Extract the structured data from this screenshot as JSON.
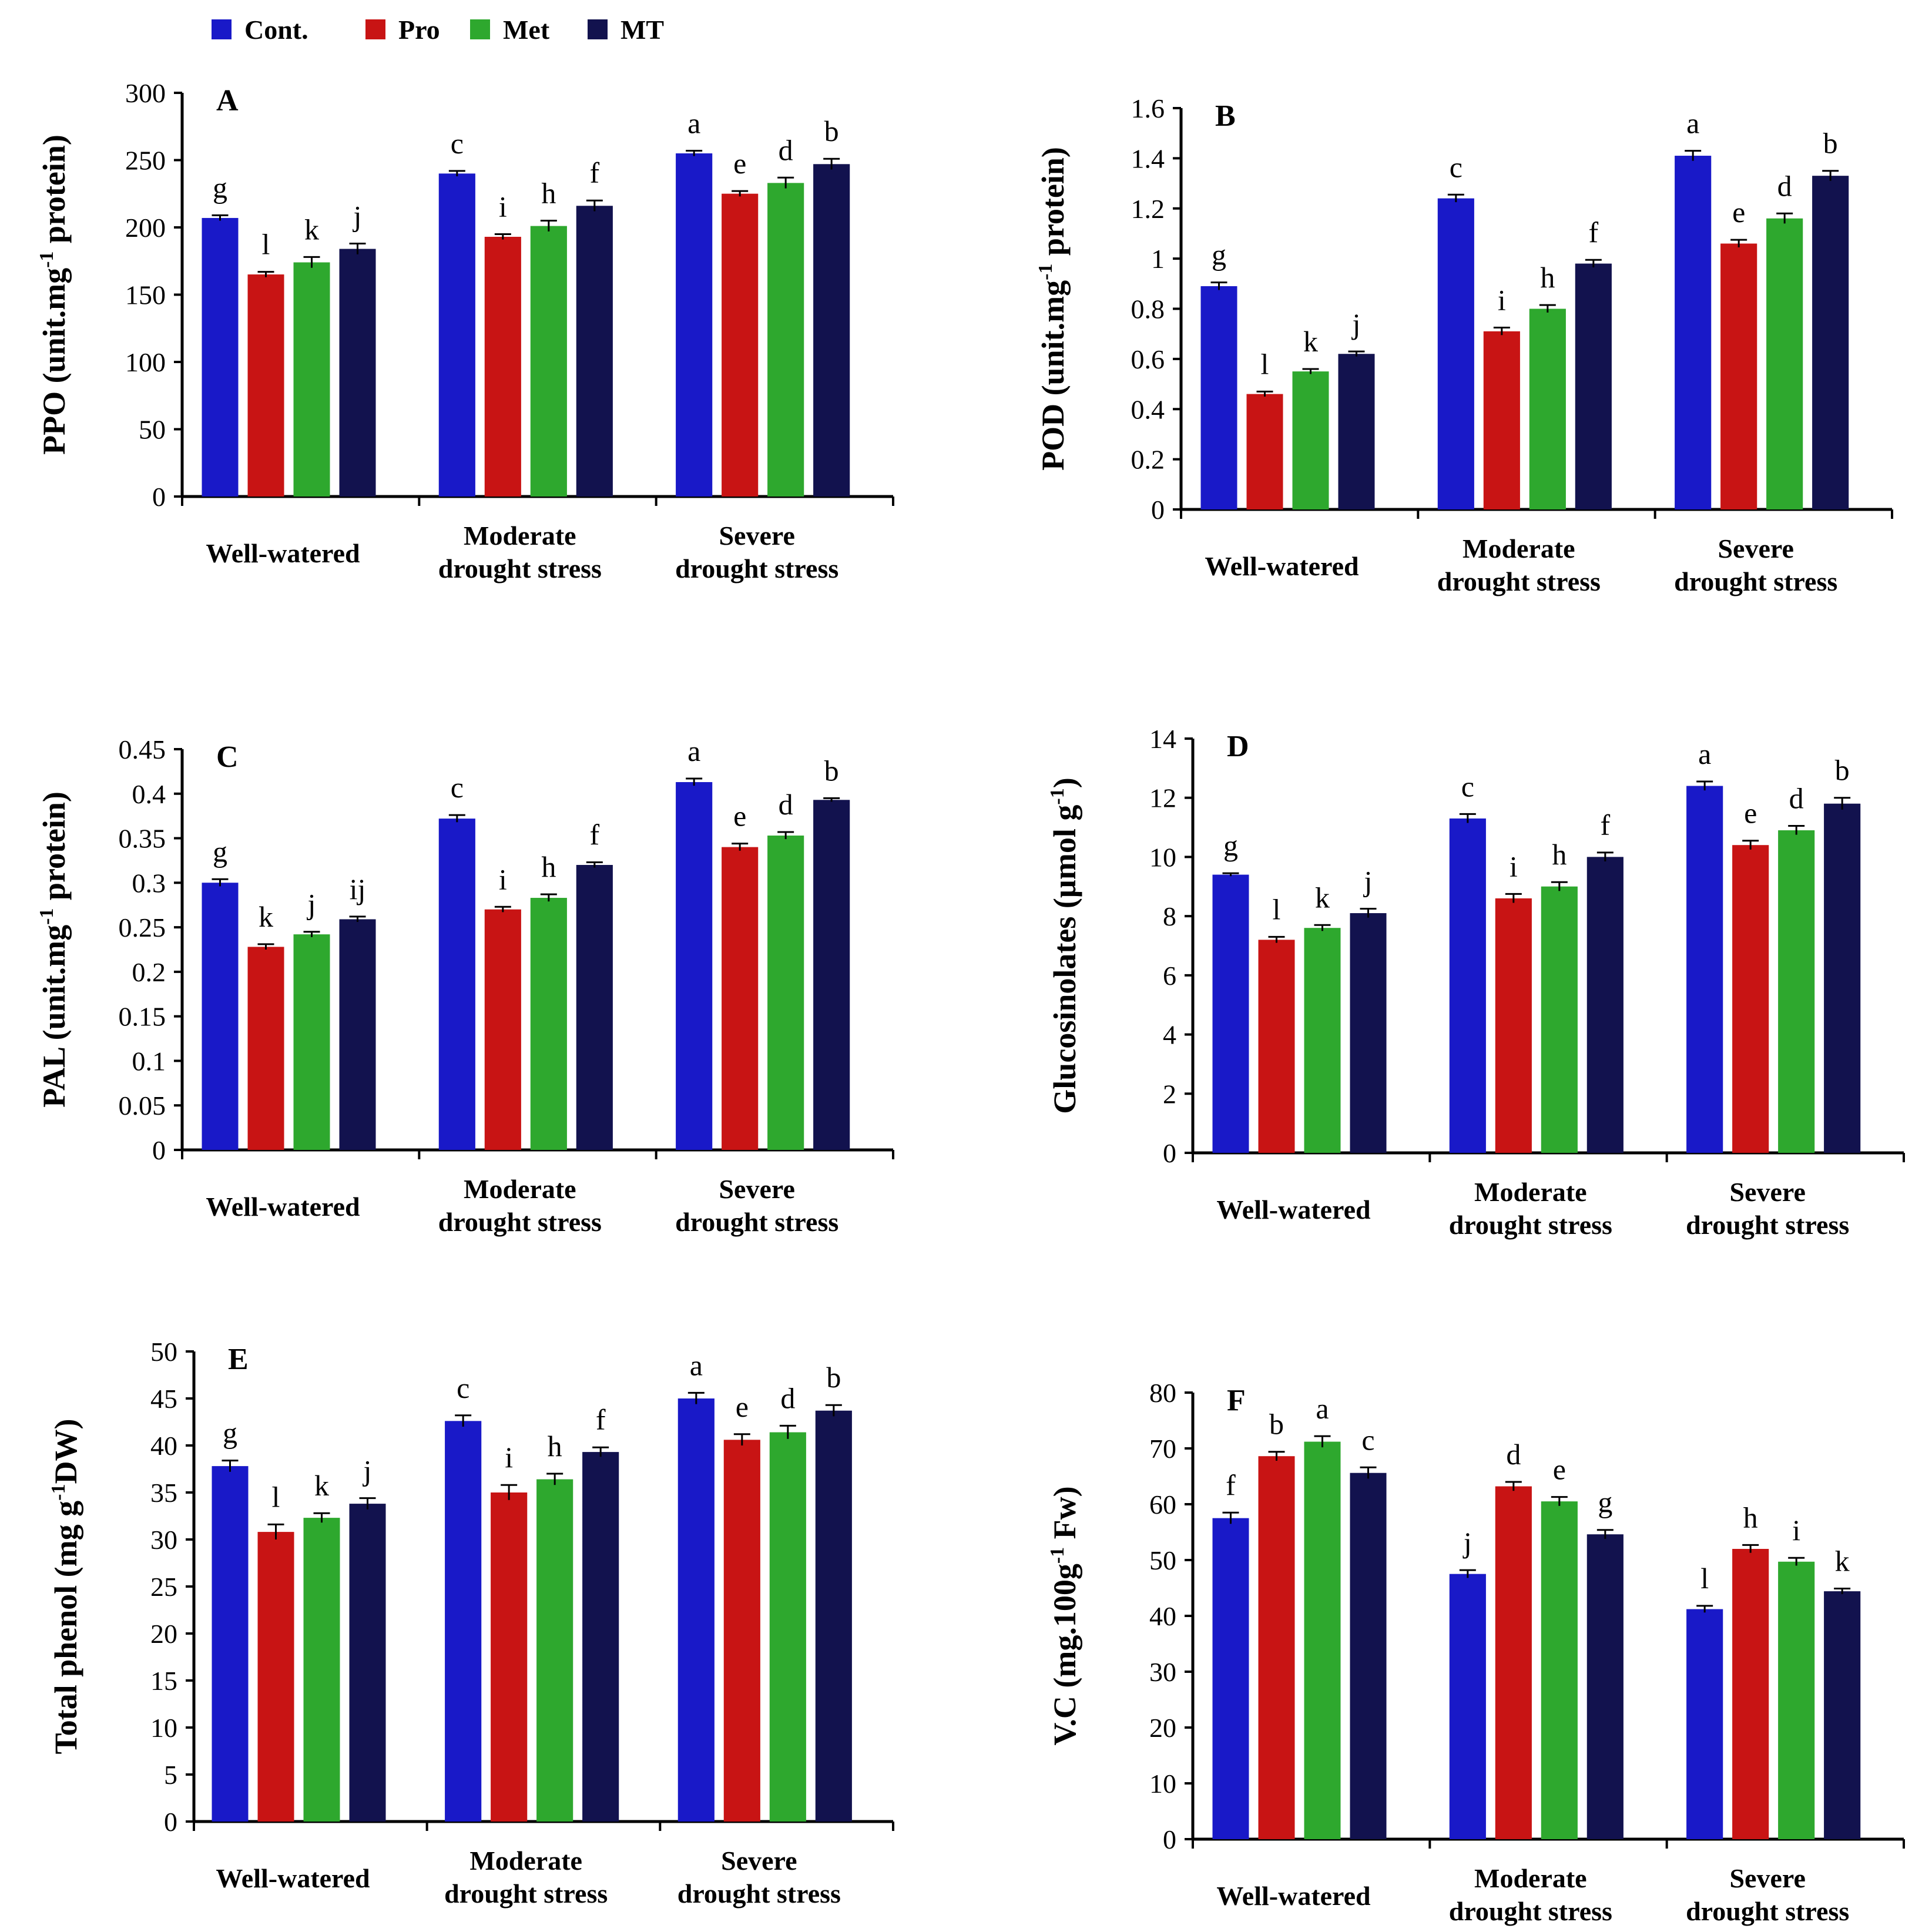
{
  "legend": [
    {
      "label": "Cont.",
      "color": "#1919c8"
    },
    {
      "label": "Pro",
      "color": "#c81414"
    },
    {
      "label": "Met",
      "color": "#2ea82e"
    },
    {
      "label": "MT",
      "color": "#12124e"
    }
  ],
  "chart_data": [
    {
      "type": "bar",
      "panel": "A",
      "ylabel": "PPO (unit.mg-1 protein)",
      "ylabel_main": "PPO (unit.mg",
      "ylabel_sup": "-1",
      "ylabel_tail": " protein)",
      "ylim": [
        0,
        300
      ],
      "yticks": [
        0,
        50,
        100,
        150,
        200,
        250,
        300
      ],
      "categories": [
        [
          "Well-watered"
        ],
        [
          "Moderate",
          "drought stress"
        ],
        [
          "Severe",
          "drought stress"
        ]
      ],
      "series": [
        {
          "name": "Cont.",
          "values": [
            207,
            240,
            255
          ],
          "errors": [
            2,
            2,
            2
          ],
          "letters": [
            "g",
            "c",
            "a"
          ]
        },
        {
          "name": "Pro",
          "values": [
            165,
            193,
            225
          ],
          "errors": [
            2,
            2,
            2
          ],
          "letters": [
            "l",
            "i",
            "e"
          ]
        },
        {
          "name": "Met",
          "values": [
            174,
            201,
            233
          ],
          "errors": [
            4,
            4,
            4
          ],
          "letters": [
            "k",
            "h",
            "d"
          ]
        },
        {
          "name": "MT",
          "values": [
            184,
            216,
            247
          ],
          "errors": [
            4,
            4,
            4
          ],
          "letters": [
            "j",
            "f",
            "b"
          ]
        }
      ]
    },
    {
      "type": "bar",
      "panel": "B",
      "ylabel": "POD (unit.mg-1 protein)",
      "ylabel_main": "POD (unit.mg",
      "ylabel_sup": "-1",
      "ylabel_tail": " protein)",
      "ylim": [
        0,
        1.6
      ],
      "yticks": [
        0,
        0.2,
        0.4,
        0.6,
        0.8,
        1,
        1.2,
        1.4,
        1.6
      ],
      "categories": [
        [
          "Well-watered"
        ],
        [
          "Moderate",
          "drought stress"
        ],
        [
          "Severe",
          "drought stress"
        ]
      ],
      "series": [
        {
          "name": "Cont.",
          "values": [
            0.89,
            1.24,
            1.41
          ],
          "errors": [
            0.015,
            0.015,
            0.02
          ],
          "letters": [
            "g",
            "c",
            "a"
          ]
        },
        {
          "name": "Pro",
          "values": [
            0.46,
            0.71,
            1.06
          ],
          "errors": [
            0.01,
            0.015,
            0.015
          ],
          "letters": [
            "l",
            "i",
            "e"
          ]
        },
        {
          "name": "Met",
          "values": [
            0.55,
            0.8,
            1.16
          ],
          "errors": [
            0.01,
            0.015,
            0.02
          ],
          "letters": [
            "k",
            "h",
            "d"
          ]
        },
        {
          "name": "MT",
          "values": [
            0.62,
            0.98,
            1.33
          ],
          "errors": [
            0.01,
            0.015,
            0.02
          ],
          "letters": [
            "j",
            "f",
            "b"
          ]
        }
      ]
    },
    {
      "type": "bar",
      "panel": "C",
      "ylabel": "PAL (unit.mg-1 protein)",
      "ylabel_main": "PAL (unit.mg",
      "ylabel_sup": "-1",
      "ylabel_tail": " protein)",
      "ylim": [
        0,
        0.45
      ],
      "yticks": [
        0,
        0.05,
        0.1,
        0.15,
        0.2,
        0.25,
        0.3,
        0.35,
        0.4,
        0.45
      ],
      "categories": [
        [
          "Well-watered"
        ],
        [
          "Moderate",
          "drought stress"
        ],
        [
          "Severe",
          "drought stress"
        ]
      ],
      "series": [
        {
          "name": "Cont.",
          "values": [
            0.3,
            0.372,
            0.413
          ],
          "errors": [
            0.004,
            0.004,
            0.004
          ],
          "letters": [
            "g",
            "c",
            "a"
          ]
        },
        {
          "name": "Pro",
          "values": [
            0.228,
            0.27,
            0.34
          ],
          "errors": [
            0.003,
            0.003,
            0.004
          ],
          "letters": [
            "k",
            "i",
            "e"
          ]
        },
        {
          "name": "Met",
          "values": [
            0.242,
            0.283,
            0.353
          ],
          "errors": [
            0.003,
            0.004,
            0.004
          ],
          "letters": [
            "j",
            "h",
            "d"
          ]
        },
        {
          "name": "MT",
          "values": [
            0.259,
            0.32,
            0.393
          ],
          "errors": [
            0.003,
            0.003,
            0.002
          ],
          "letters": [
            "ij",
            "f",
            "b"
          ]
        }
      ]
    },
    {
      "type": "bar",
      "panel": "D",
      "ylabel": "Glucosinolates (µmol g-1)",
      "ylabel_main": "Glucosinolates  (µmol g",
      "ylabel_sup": "-1",
      "ylabel_tail": ")",
      "ylim": [
        0,
        14
      ],
      "yticks": [
        0,
        2,
        4,
        6,
        8,
        10,
        12,
        14
      ],
      "categories": [
        [
          "Well-watered"
        ],
        [
          "Moderate",
          "drought stress"
        ],
        [
          "Severe",
          "drought stress"
        ]
      ],
      "series": [
        {
          "name": "Cont.",
          "values": [
            9.4,
            11.3,
            12.4
          ],
          "errors": [
            0.05,
            0.15,
            0.15
          ],
          "letters": [
            "g",
            "c",
            "a"
          ]
        },
        {
          "name": "Pro",
          "values": [
            7.2,
            8.6,
            10.4
          ],
          "errors": [
            0.1,
            0.15,
            0.15
          ],
          "letters": [
            "l",
            "i",
            "e"
          ]
        },
        {
          "name": "Met",
          "values": [
            7.6,
            9.0,
            10.9
          ],
          "errors": [
            0.1,
            0.15,
            0.15
          ],
          "letters": [
            "k",
            "h",
            "d"
          ]
        },
        {
          "name": "MT",
          "values": [
            8.1,
            10.0,
            11.8
          ],
          "errors": [
            0.15,
            0.15,
            0.2
          ],
          "letters": [
            "j",
            "f",
            "b"
          ]
        }
      ]
    },
    {
      "type": "bar",
      "panel": "E",
      "ylabel": "Total phenol (mg g-1DW)",
      "ylabel_main": "Total phenol (mg g",
      "ylabel_sup": "-1",
      "ylabel_tail": "DW)",
      "ylim": [
        0,
        50
      ],
      "yticks": [
        0,
        5,
        10,
        15,
        20,
        25,
        30,
        35,
        40,
        45,
        50
      ],
      "categories": [
        [
          "Well-watered"
        ],
        [
          "Moderate",
          "drought stress"
        ],
        [
          "Severe",
          "drought stress"
        ]
      ],
      "series": [
        {
          "name": "Cont.",
          "values": [
            37.8,
            42.6,
            45.0
          ],
          "errors": [
            0.6,
            0.6,
            0.6
          ],
          "letters": [
            "g",
            "c",
            "a"
          ]
        },
        {
          "name": "Pro",
          "values": [
            30.8,
            35.0,
            40.6
          ],
          "errors": [
            0.8,
            0.8,
            0.6
          ],
          "letters": [
            "l",
            "i",
            "e"
          ]
        },
        {
          "name": "Met",
          "values": [
            32.3,
            36.4,
            41.4
          ],
          "errors": [
            0.5,
            0.6,
            0.7
          ],
          "letters": [
            "k",
            "h",
            "d"
          ]
        },
        {
          "name": "MT",
          "values": [
            33.8,
            39.3,
            43.7
          ],
          "errors": [
            0.6,
            0.5,
            0.6
          ],
          "letters": [
            "j",
            "f",
            "b"
          ]
        }
      ]
    },
    {
      "type": "bar",
      "panel": "F",
      "ylabel": "V.C (mg.100g-1 Fw)",
      "ylabel_main": "V.C (mg.100g",
      "ylabel_sup": "-1",
      "ylabel_tail": " Fw)",
      "ylim": [
        0,
        80
      ],
      "yticks": [
        0,
        10,
        20,
        30,
        40,
        50,
        60,
        70,
        80
      ],
      "categories": [
        [
          "Well-watered"
        ],
        [
          "Moderate",
          "drought stress"
        ],
        [
          "Severe",
          "drought stress"
        ]
      ],
      "series": [
        {
          "name": "Cont.",
          "values": [
            57.5,
            47.5,
            41.2
          ],
          "errors": [
            1.0,
            0.7,
            0.6
          ],
          "letters": [
            "f",
            "j",
            "l"
          ]
        },
        {
          "name": "Pro",
          "values": [
            68.6,
            63.2,
            52.0
          ],
          "errors": [
            0.8,
            0.8,
            0.7
          ],
          "letters": [
            "b",
            "d",
            "h"
          ]
        },
        {
          "name": "Met",
          "values": [
            71.2,
            60.5,
            49.7
          ],
          "errors": [
            1.0,
            0.8,
            0.7
          ],
          "letters": [
            "a",
            "e",
            "i"
          ]
        },
        {
          "name": "MT",
          "values": [
            65.6,
            54.6,
            44.4
          ],
          "errors": [
            1.0,
            0.8,
            0.5
          ],
          "letters": [
            "c",
            "g",
            "k"
          ]
        }
      ]
    }
  ]
}
